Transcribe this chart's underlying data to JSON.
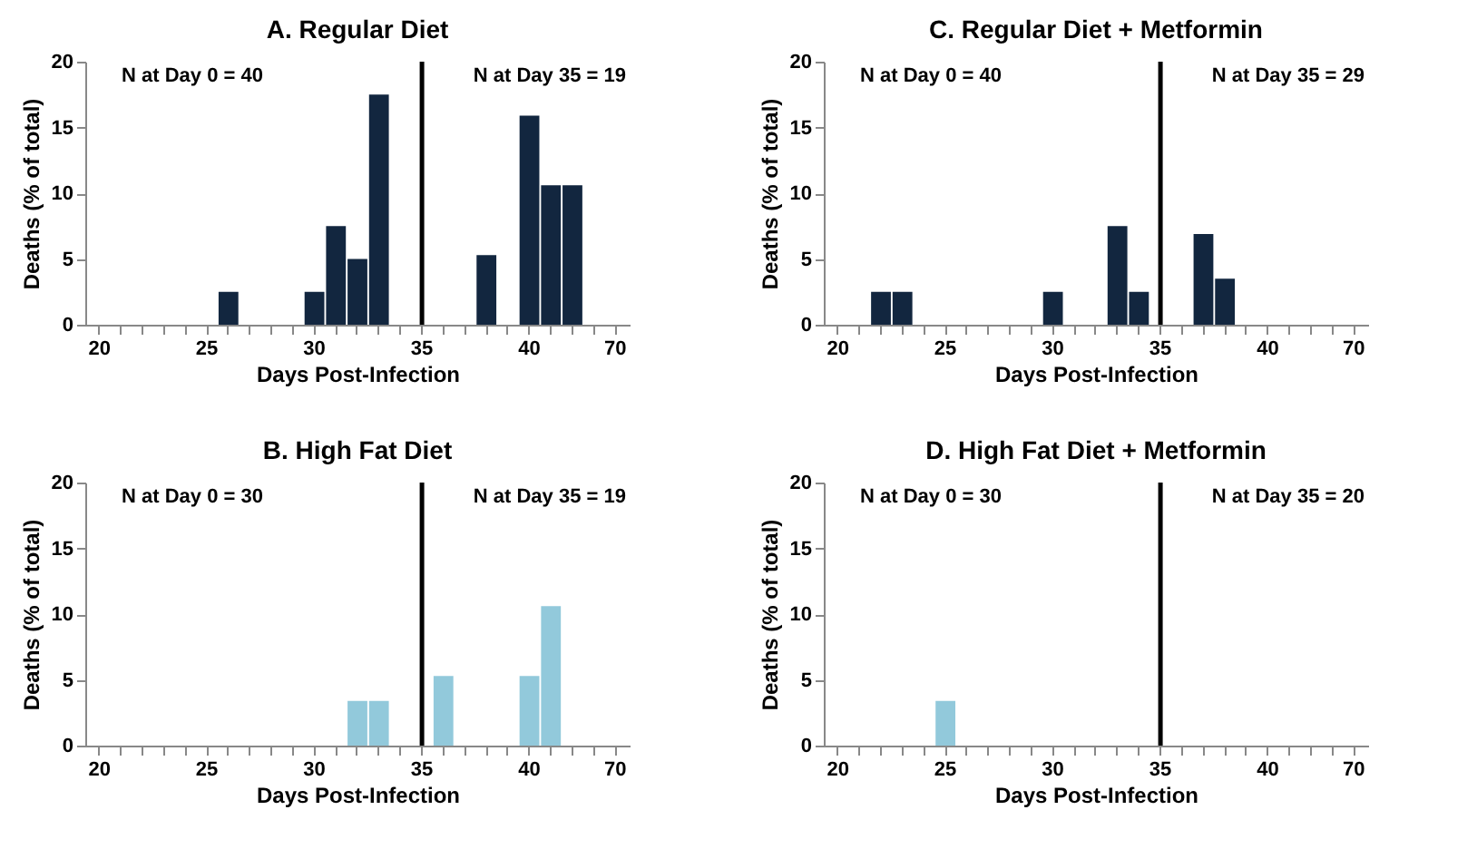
{
  "chart_data": [
    {
      "type": "bar",
      "title": "A. Regular Diet",
      "xlabel": "Days Post-Infection",
      "ylabel": "Deaths (% of total)",
      "categories": [
        "20",
        null,
        null,
        null,
        null,
        "25",
        null,
        null,
        null,
        null,
        "30",
        null,
        null,
        null,
        null,
        "35",
        null,
        null,
        null,
        null,
        "40",
        null,
        null,
        null,
        "70"
      ],
      "values": [
        0,
        0,
        0,
        0,
        0,
        0,
        2.5,
        0,
        0,
        0,
        2.5,
        7.5,
        5,
        17.5,
        0,
        0,
        0,
        0,
        5.3,
        0,
        15.9,
        10.6,
        10.6,
        0,
        0
      ],
      "color": "#12263f",
      "ylim": [
        0,
        20
      ],
      "yticks": [
        0,
        5,
        10,
        15,
        20
      ],
      "ref_lines": [
        {
          "axis": "x",
          "value": "35",
          "color": "#000000"
        }
      ],
      "annotations": [
        "N at Day 0 = 40",
        "N at Day 35 = 19"
      ]
    },
    {
      "type": "bar",
      "title": "C. Regular Diet + Metformin",
      "xlabel": "Days Post-Infection",
      "ylabel": "Deaths (% of total)",
      "categories": [
        "20",
        null,
        null,
        null,
        null,
        "25",
        null,
        null,
        null,
        null,
        "30",
        null,
        null,
        null,
        null,
        "35",
        null,
        null,
        null,
        null,
        "40",
        null,
        null,
        null,
        "70"
      ],
      "values": [
        0,
        0,
        2.5,
        2.5,
        0,
        0,
        0,
        0,
        0,
        0,
        2.5,
        0,
        0,
        7.5,
        2.5,
        0,
        0,
        6.9,
        3.5,
        0,
        0,
        0,
        0,
        0,
        0
      ],
      "color": "#12263f",
      "ylim": [
        0,
        20
      ],
      "yticks": [
        0,
        5,
        10,
        15,
        20
      ],
      "ref_lines": [
        {
          "axis": "x",
          "value": "35",
          "color": "#000000"
        }
      ],
      "annotations": [
        "N at Day 0 = 40",
        "N at Day 35 = 29"
      ]
    },
    {
      "type": "bar",
      "title": "B. High Fat Diet",
      "xlabel": "Days Post-Infection",
      "ylabel": "Deaths (% of total)",
      "categories": [
        "20",
        null,
        null,
        null,
        null,
        "25",
        null,
        null,
        null,
        null,
        "30",
        null,
        null,
        null,
        null,
        "35",
        null,
        null,
        null,
        null,
        "40",
        null,
        null,
        null,
        "70"
      ],
      "values": [
        0,
        0,
        0,
        0,
        0,
        0,
        0,
        0,
        0,
        0,
        0,
        0,
        3.4,
        3.4,
        0,
        0,
        5.3,
        0,
        0,
        0,
        5.3,
        10.6,
        0,
        0,
        0
      ],
      "color": "#92c9db",
      "ylim": [
        0,
        20
      ],
      "yticks": [
        0,
        5,
        10,
        15,
        20
      ],
      "ref_lines": [
        {
          "axis": "x",
          "value": "35",
          "color": "#000000"
        }
      ],
      "annotations": [
        "N at Day 0 = 30",
        "N at Day 35 = 19"
      ]
    },
    {
      "type": "bar",
      "title": "D. High Fat Diet + Metformin",
      "xlabel": "Days Post-Infection",
      "ylabel": "Deaths (% of total)",
      "categories": [
        "20",
        null,
        null,
        null,
        null,
        "25",
        null,
        null,
        null,
        null,
        "30",
        null,
        null,
        null,
        null,
        "35",
        null,
        null,
        null,
        null,
        "40",
        null,
        null,
        null,
        "70"
      ],
      "values": [
        0,
        0,
        0,
        0,
        0,
        3.4,
        0,
        0,
        0,
        0,
        0,
        0,
        0,
        0,
        0,
        0,
        0,
        0,
        0,
        0,
        0,
        0,
        0,
        0,
        0
      ],
      "color": "#92c9db",
      "ylim": [
        0,
        20
      ],
      "yticks": [
        0,
        5,
        10,
        15,
        20
      ],
      "ref_lines": [
        {
          "axis": "x",
          "value": "35",
          "color": "#000000"
        }
      ],
      "annotations": [
        "N at Day 0 = 30",
        "N at Day 35 = 20"
      ]
    }
  ]
}
